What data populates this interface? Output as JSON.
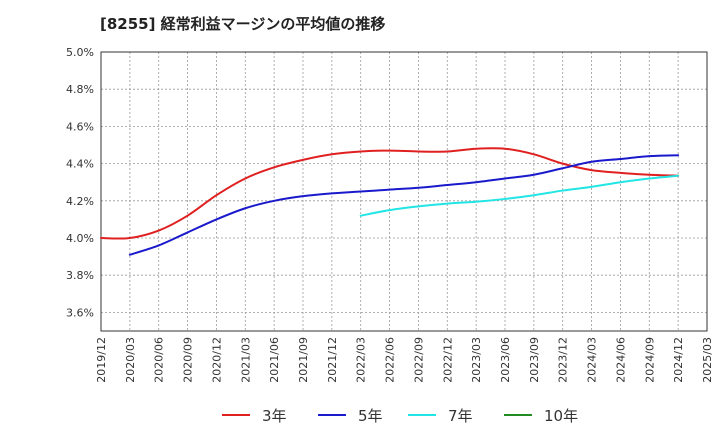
{
  "chart_data": {
    "type": "line",
    "title": "[8255]  経常利益マージンの平均値の推移",
    "xlabel": "",
    "ylabel": "",
    "x_ticks": [
      "2019/12",
      "2020/03",
      "2020/06",
      "2020/09",
      "2020/12",
      "2021/03",
      "2021/06",
      "2021/09",
      "2021/12",
      "2022/03",
      "2022/06",
      "2022/09",
      "2022/12",
      "2023/03",
      "2023/06",
      "2023/09",
      "2023/12",
      "2024/03",
      "2024/06",
      "2024/09",
      "2024/12",
      "2025/03"
    ],
    "y_ticks": [
      "3.6%",
      "3.8%",
      "4.0%",
      "4.2%",
      "4.4%",
      "4.6%",
      "4.8%",
      "5.0%"
    ],
    "ylim": [
      3.5,
      5.0
    ],
    "grid": true,
    "legend_position": "bottom",
    "series": [
      {
        "name": "3年",
        "color": "#e02020",
        "points": [
          [
            "2019/12",
            4.0
          ],
          [
            "2020/03",
            4.0
          ],
          [
            "2020/06",
            4.04
          ],
          [
            "2020/09",
            4.12
          ],
          [
            "2020/12",
            4.23
          ],
          [
            "2021/03",
            4.32
          ],
          [
            "2021/06",
            4.38
          ],
          [
            "2021/09",
            4.42
          ],
          [
            "2021/12",
            4.45
          ],
          [
            "2022/03",
            4.465
          ],
          [
            "2022/06",
            4.47
          ],
          [
            "2022/09",
            4.465
          ],
          [
            "2022/12",
            4.465
          ],
          [
            "2023/03",
            4.48
          ],
          [
            "2023/06",
            4.48
          ],
          [
            "2023/09",
            4.45
          ],
          [
            "2023/12",
            4.4
          ],
          [
            "2024/03",
            4.365
          ],
          [
            "2024/06",
            4.35
          ],
          [
            "2024/09",
            4.34
          ],
          [
            "2024/12",
            4.335
          ]
        ]
      },
      {
        "name": "5年",
        "color": "#1a1acc",
        "points": [
          [
            "2020/03",
            3.91
          ],
          [
            "2020/06",
            3.96
          ],
          [
            "2020/09",
            4.03
          ],
          [
            "2020/12",
            4.1
          ],
          [
            "2021/03",
            4.16
          ],
          [
            "2021/06",
            4.2
          ],
          [
            "2021/09",
            4.225
          ],
          [
            "2021/12",
            4.24
          ],
          [
            "2022/03",
            4.25
          ],
          [
            "2022/06",
            4.26
          ],
          [
            "2022/09",
            4.27
          ],
          [
            "2022/12",
            4.285
          ],
          [
            "2023/03",
            4.3
          ],
          [
            "2023/06",
            4.32
          ],
          [
            "2023/09",
            4.34
          ],
          [
            "2023/12",
            4.375
          ],
          [
            "2024/03",
            4.41
          ],
          [
            "2024/06",
            4.425
          ],
          [
            "2024/09",
            4.44
          ],
          [
            "2024/12",
            4.445
          ]
        ]
      },
      {
        "name": "7年",
        "color": "#22e5e5",
        "points": [
          [
            "2022/03",
            4.12
          ],
          [
            "2022/06",
            4.15
          ],
          [
            "2022/09",
            4.17
          ],
          [
            "2022/12",
            4.185
          ],
          [
            "2023/03",
            4.195
          ],
          [
            "2023/06",
            4.21
          ],
          [
            "2023/09",
            4.23
          ],
          [
            "2023/12",
            4.255
          ],
          [
            "2024/03",
            4.275
          ],
          [
            "2024/06",
            4.3
          ],
          [
            "2024/09",
            4.32
          ],
          [
            "2024/12",
            4.335
          ]
        ]
      },
      {
        "name": "10年",
        "color": "#228b22",
        "points": []
      }
    ]
  }
}
